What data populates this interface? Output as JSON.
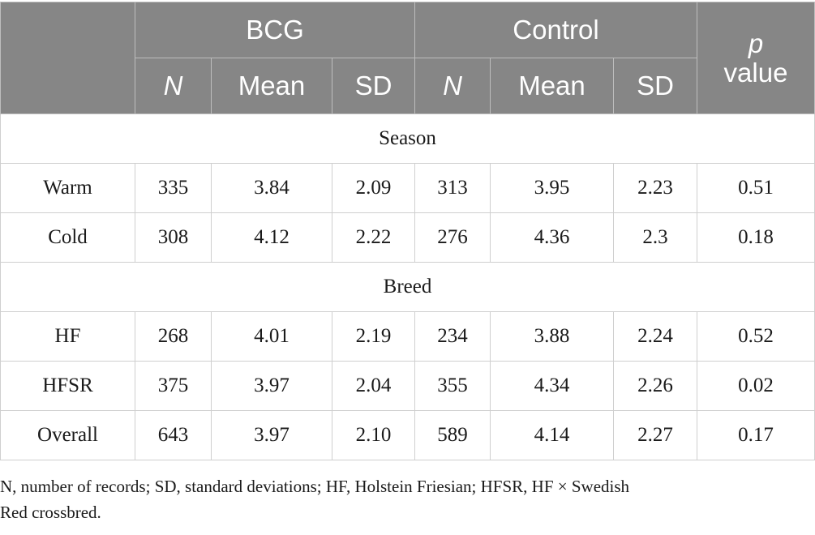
{
  "header": {
    "group_bcg": "BCG",
    "group_control": "Control",
    "pvalue_p": "p",
    "pvalue_value": "value",
    "sub_columns": [
      "N",
      "Mean",
      "SD",
      "N",
      "Mean",
      "SD"
    ]
  },
  "sections": [
    {
      "label": "Season",
      "rows": [
        {
          "label": "Warm",
          "cells": [
            "335",
            "3.84",
            "2.09",
            "313",
            "3.95",
            "2.23",
            "0.51"
          ]
        },
        {
          "label": "Cold",
          "cells": [
            "308",
            "4.12",
            "2.22",
            "276",
            "4.36",
            "2.3",
            "0.18"
          ]
        }
      ]
    },
    {
      "label": "Breed",
      "rows": [
        {
          "label": "HF",
          "cells": [
            "268",
            "4.01",
            "2.19",
            "234",
            "3.88",
            "2.24",
            "0.52"
          ]
        },
        {
          "label": "HFSR",
          "cells": [
            "375",
            "3.97",
            "2.04",
            "355",
            "4.34",
            "2.26",
            "0.02"
          ]
        },
        {
          "label": "Overall",
          "cells": [
            "643",
            "3.97",
            "2.10",
            "589",
            "4.14",
            "2.27",
            "0.17"
          ]
        }
      ]
    }
  ],
  "footnote": {
    "line1": "N, number of records; SD, standard deviations; HF, Holstein Friesian; HFSR, HF × Swedish",
    "line2": "Red crossbred."
  }
}
